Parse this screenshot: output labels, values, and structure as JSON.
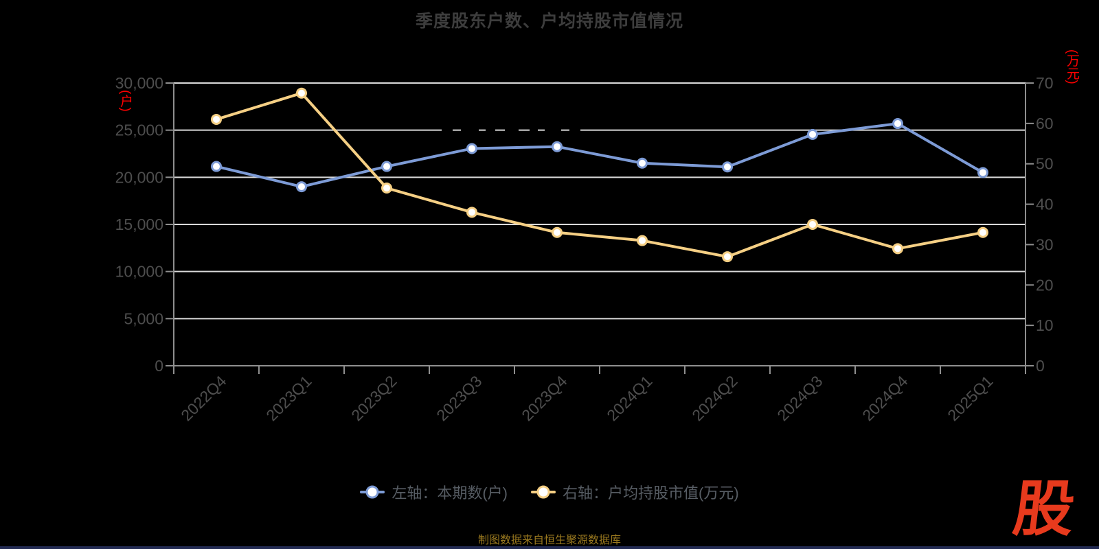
{
  "page": {
    "background": "#000000"
  },
  "footer_note": "制图数据来自恒生聚源数据库",
  "logo_text": "股",
  "colors": {
    "series_blue": "#7d9bd6",
    "series_orange": "#f5cf84",
    "axis_unit_red": "#ff0000",
    "logo_red": "#e83a1d",
    "gridline": "#dadada",
    "axis_line": "#8f8f8f",
    "tick_label": "#4e4e4e",
    "legend_text": "#575d64",
    "footer_gold": "#9a791f",
    "title_gray": "#3d3d3d"
  },
  "chart_data": {
    "type": "line",
    "title": "季度股东户数、户均持股市值情况",
    "categories": [
      "2022Q4",
      "2023Q1",
      "2023Q2",
      "2023Q3",
      "2023Q4",
      "2024Q1",
      "2024Q2",
      "2024Q3",
      "2024Q4",
      "2025Q1"
    ],
    "series": [
      {
        "name": "左轴：本期数(户)",
        "yaxis": "left",
        "color": "#7d9bd6",
        "values": [
          21150,
          19000,
          21150,
          23050,
          23250,
          21500,
          21100,
          24550,
          25700,
          20500
        ]
      },
      {
        "name": "右轴：户均持股市值(万元)",
        "yaxis": "right",
        "color": "#f5cf84",
        "values": [
          61,
          67.5,
          44,
          38,
          33,
          31,
          27,
          35,
          29,
          33
        ]
      }
    ],
    "left_axis": {
      "unit": "(户)",
      "min": 0,
      "max": 30000,
      "interval": 5000,
      "tick_values": [
        0,
        5000,
        10000,
        15000,
        20000,
        25000,
        30000
      ],
      "tick_labels": [
        "0",
        "5,000",
        "10,000",
        "15,000",
        "20,000",
        "25,000",
        "30,000"
      ]
    },
    "right_axis": {
      "unit": "(万元)",
      "min": 0,
      "max": 70,
      "interval": 10,
      "tick_values": [
        0,
        10,
        20,
        30,
        40,
        50,
        60,
        70
      ],
      "tick_labels": [
        "0",
        "10",
        "20",
        "30",
        "40",
        "50",
        "60",
        "70"
      ]
    },
    "grid": "horizontal-only",
    "legend_position": "bottom",
    "x_label_rotate": 45
  }
}
